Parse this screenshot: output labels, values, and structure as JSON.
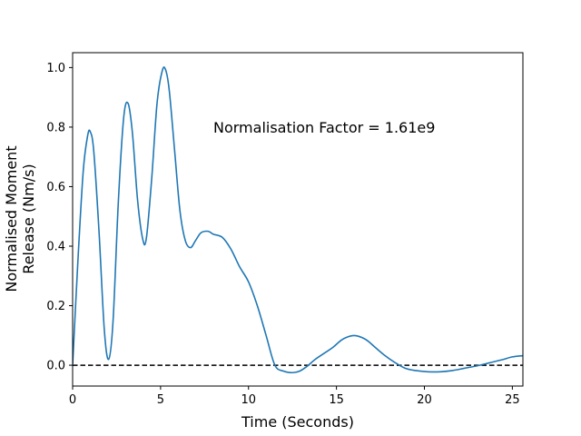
{
  "chart_data": {
    "type": "line",
    "xlabel": "Time (Seconds)",
    "ylabel_lines": [
      "Normalised Moment",
      "Release (Nm/s)"
    ],
    "xlim": [
      0,
      25.6
    ],
    "ylim": [
      -0.07,
      1.05
    ],
    "xticks": [
      0,
      5,
      10,
      15,
      20,
      25
    ],
    "yticks": [
      0.0,
      0.2,
      0.4,
      0.6,
      0.8,
      1.0
    ],
    "xtick_labels": [
      "0",
      "5",
      "10",
      "15",
      "20",
      "25"
    ],
    "ytick_labels": [
      "0.0",
      "0.2",
      "0.4",
      "0.6",
      "0.8",
      "1.0"
    ],
    "grid": false,
    "annotation": {
      "text": "Normalisation Factor = 1.61e9",
      "x": 8.0,
      "y": 0.8
    },
    "reference_line": {
      "y": 0.0,
      "style": "dashed",
      "color": "#000000"
    },
    "series": [
      {
        "color": "#1f77b4",
        "x": [
          0,
          0.3,
          0.6,
          0.85,
          1.0,
          1.2,
          1.5,
          1.8,
          2.05,
          2.3,
          2.6,
          2.9,
          3.15,
          3.4,
          3.7,
          4.0,
          4.2,
          4.5,
          4.8,
          5.1,
          5.3,
          5.5,
          5.8,
          6.1,
          6.4,
          6.7,
          7.0,
          7.3,
          7.7,
          8.0,
          8.5,
          9.0,
          9.5,
          10.0,
          10.5,
          11.0,
          11.5,
          12.0,
          12.5,
          12.9,
          13.3,
          13.8,
          14.3,
          14.8,
          15.3,
          15.8,
          16.2,
          16.7,
          17.2,
          17.7,
          18.3,
          18.9,
          19.5,
          20.2,
          20.9,
          21.6,
          22.3,
          23.0,
          23.7,
          24.4,
          25.0,
          25.6
        ],
        "y": [
          0.0,
          0.35,
          0.65,
          0.77,
          0.785,
          0.72,
          0.45,
          0.12,
          0.02,
          0.15,
          0.55,
          0.83,
          0.88,
          0.78,
          0.55,
          0.42,
          0.43,
          0.63,
          0.88,
          0.99,
          0.99,
          0.92,
          0.72,
          0.52,
          0.42,
          0.395,
          0.42,
          0.445,
          0.45,
          0.44,
          0.43,
          0.39,
          0.33,
          0.28,
          0.2,
          0.1,
          0.0,
          -0.02,
          -0.025,
          -0.02,
          -0.005,
          0.02,
          0.04,
          0.06,
          0.085,
          0.098,
          0.098,
          0.085,
          0.06,
          0.035,
          0.01,
          -0.01,
          -0.018,
          -0.022,
          -0.022,
          -0.018,
          -0.01,
          -0.002,
          0.008,
          0.018,
          0.028,
          0.032
        ]
      }
    ]
  }
}
